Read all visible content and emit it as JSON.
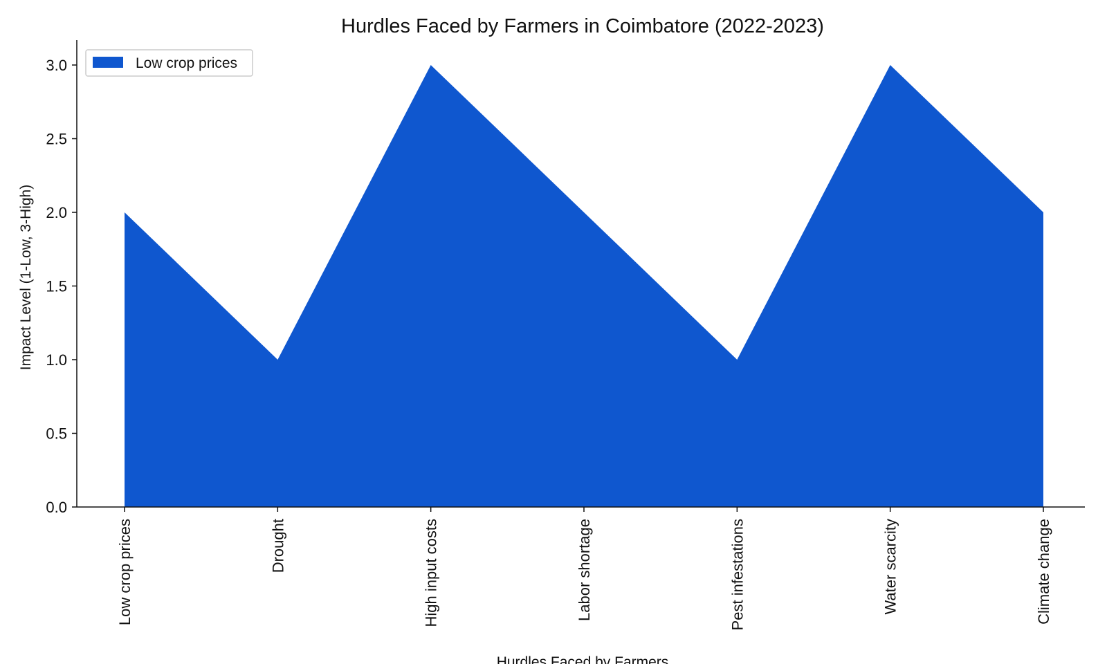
{
  "chart_data": {
    "type": "area",
    "title": "Hurdles Faced by Farmers in Coimbatore (2022-2023)",
    "xlabel": "Hurdles Faced by Farmers",
    "ylabel": "Impact Level (1-Low, 3-High)",
    "categories": [
      "Low crop prices",
      "Drought",
      "High input costs",
      "Labor shortage",
      "Pest infestations",
      "Water scarcity",
      "Climate change"
    ],
    "series": [
      {
        "name": "Low crop prices",
        "values": [
          2,
          1,
          3,
          2,
          1,
          3,
          2
        ],
        "color": "#0f57cf"
      }
    ],
    "ylim": [
      0,
      3.0
    ],
    "yticks": [
      "0.0",
      "0.5",
      "1.0",
      "1.5",
      "2.0",
      "2.5",
      "3.0"
    ],
    "grid": false,
    "legend_position": "top-left"
  }
}
